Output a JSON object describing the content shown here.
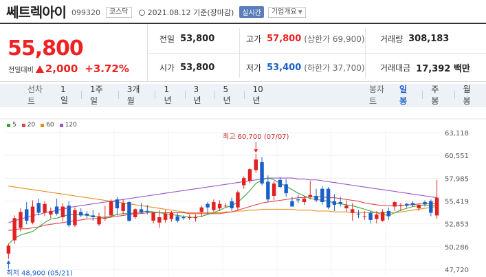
{
  "header": {
    "name": "쎄트렉아이",
    "code": "099320",
    "market": "코스닥",
    "date": "2021.08.12 기준(장마감)",
    "realtime": "실시간",
    "company_info": "기업개요"
  },
  "summary": {
    "price": "55,800",
    "change_label": "전일대비",
    "change": "2,000",
    "change_rate": "+3.72%",
    "prev_label": "전일",
    "prev": "53,800",
    "high_label": "고가",
    "high": "57,800",
    "upper": "(상한가 69,900)",
    "volume_label": "거래량",
    "volume": "308,183",
    "open_label": "시가",
    "open": "53,800",
    "low_label": "저가",
    "low": "53,400",
    "lower": "(하한가 37,700)",
    "amount_label": "거래대금",
    "amount": "17,392 백만"
  },
  "toolbar": {
    "line_label": "선차트",
    "line_periods": [
      "1일",
      "1주일",
      "3개월",
      "1년",
      "3년",
      "5년",
      "10년"
    ],
    "candle_label": "봉차트",
    "candle_periods": [
      "일봉",
      "주봉",
      "월봉"
    ],
    "active_candle": "일봉"
  },
  "colors": {
    "up": "#e22222",
    "down": "#1a5fc9",
    "ma5": "#3aa63a",
    "ma20": "#e04545",
    "ma60": "#e88a1a",
    "ma120": "#9a55c8"
  },
  "chart_data": {
    "type": "candlestick",
    "legend": [
      "5",
      "20",
      "60",
      "120"
    ],
    "y_ticks": [
      "63,118",
      "60,551",
      "57,985",
      "55,419",
      "52,853",
      "50,286",
      "47,720"
    ],
    "ylim": [
      47720,
      63118
    ],
    "high_label": "최고 60,700 (07/07)",
    "low_label": "최저 48,900 (05/21)",
    "candles": [
      [
        49500,
        50600,
        48900,
        50400
      ],
      [
        51000,
        53800,
        50600,
        53500
      ],
      [
        52400,
        54600,
        52000,
        54200
      ],
      [
        54500,
        55300,
        52800,
        53200
      ],
      [
        53000,
        55500,
        52800,
        54800
      ],
      [
        55200,
        55700,
        53800,
        54100
      ],
      [
        54100,
        55400,
        53700,
        55100
      ],
      [
        53900,
        54700,
        53500,
        54300
      ],
      [
        54800,
        55700,
        53800,
        54000
      ],
      [
        53600,
        55200,
        53100,
        54800
      ],
      [
        54900,
        55400,
        52500,
        52700
      ],
      [
        52700,
        54700,
        52500,
        54400
      ],
      [
        54200,
        54600,
        53600,
        53800
      ],
      [
        54000,
        54300,
        53500,
        53800
      ],
      [
        53800,
        54400,
        53200,
        53600
      ],
      [
        52800,
        54100,
        52600,
        53700
      ],
      [
        53500,
        54900,
        53200,
        53500
      ],
      [
        53800,
        55600,
        53600,
        55400
      ],
      [
        55600,
        55900,
        53800,
        54600
      ],
      [
        54300,
        55600,
        53900,
        55200
      ],
      [
        55300,
        55400,
        53100,
        53200
      ],
      [
        53600,
        54600,
        53400,
        54500
      ],
      [
        54500,
        55200,
        54000,
        54100
      ],
      [
        54300,
        55000,
        53900,
        54200
      ],
      [
        53200,
        54200,
        52900,
        54100
      ],
      [
        53000,
        54400,
        52400,
        53600
      ],
      [
        53300,
        54400,
        53000,
        54000
      ],
      [
        53400,
        54300,
        53100,
        54100
      ],
      [
        53700,
        54100,
        53000,
        53200
      ],
      [
        53600,
        53800,
        53300,
        53500
      ],
      [
        53600,
        53900,
        53300,
        53600
      ],
      [
        53500,
        53900,
        53100,
        53600
      ],
      [
        54200,
        54900,
        53600,
        54700
      ],
      [
        55100,
        55300,
        54000,
        54700
      ],
      [
        54400,
        55600,
        54200,
        55300
      ],
      [
        54600,
        55500,
        54300,
        55100
      ],
      [
        54900,
        55200,
        54700,
        54900
      ],
      [
        55400,
        55800,
        54300,
        54600
      ],
      [
        54700,
        56600,
        54400,
        56400
      ],
      [
        57200,
        58200,
        56800,
        58000
      ],
      [
        57700,
        59100,
        57400,
        59000
      ],
      [
        58900,
        60700,
        58600,
        60100
      ],
      [
        59800,
        60400,
        57200,
        57400
      ],
      [
        57600,
        58300,
        55300,
        55600
      ],
      [
        56000,
        57700,
        55500,
        57400
      ],
      [
        57800,
        58100,
        56900,
        57000
      ],
      [
        57300,
        57900,
        55900,
        56300
      ],
      [
        55400,
        55900,
        54800,
        54800
      ],
      [
        55600,
        56100,
        55200,
        55500
      ],
      [
        55300,
        56000,
        55000,
        55700
      ],
      [
        55900,
        57700,
        55600,
        56100
      ],
      [
        56000,
        56800,
        55300,
        55500
      ],
      [
        56800,
        57100,
        55000,
        55300
      ],
      [
        56800,
        57000,
        54500,
        54700
      ],
      [
        55400,
        56200,
        54300,
        55000
      ],
      [
        55300,
        55900,
        54800,
        55100
      ],
      [
        54600,
        55500,
        54200,
        54900
      ],
      [
        54100,
        55200,
        53200,
        54500
      ],
      [
        54000,
        54400,
        53500,
        53900
      ],
      [
        53700,
        54300,
        53300,
        53700
      ],
      [
        54100,
        54300,
        52900,
        53300
      ],
      [
        53400,
        54300,
        52900,
        53900
      ],
      [
        53200,
        54500,
        53100,
        54200
      ],
      [
        54300,
        54700,
        53300,
        53700
      ],
      [
        54800,
        55400,
        54300,
        55300
      ],
      [
        54900,
        55200,
        54300,
        55000
      ],
      [
        55100,
        55200,
        54700,
        54900
      ],
      [
        55200,
        55400,
        54800,
        55000
      ],
      [
        54600,
        55100,
        54300,
        55000
      ],
      [
        55300,
        55500,
        54800,
        55100
      ],
      [
        55400,
        55600,
        53700,
        54100
      ],
      [
        53800,
        57800,
        53400,
        55800
      ]
    ],
    "ma5": [
      50600,
      51200,
      51600,
      51800,
      52000,
      52500,
      53000,
      53400,
      53500,
      53700,
      53900,
      53900,
      53900,
      53800,
      53700,
      53600,
      53600,
      53700,
      53900,
      54000,
      54000,
      54100,
      54200,
      54300,
      54200,
      54100,
      54000,
      53900,
      53800,
      53700,
      53600,
      53600,
      53700,
      53900,
      54100,
      54400,
      54700,
      54900,
      55300,
      55900,
      56600,
      57400,
      57800,
      58000,
      57800,
      57400,
      57100,
      56700,
      56300,
      56000,
      55700,
      55600,
      55500,
      55400,
      55200,
      55100,
      55000,
      54900,
      54700,
      54500,
      54300,
      54100,
      53900,
      53800,
      54100,
      54400,
      54600,
      54800,
      54900,
      55000,
      54900,
      55000
    ],
    "ma20": [
      52100,
      52200,
      52300,
      52300,
      52400,
      52500,
      52700,
      52800,
      52900,
      53000,
      53100,
      53200,
      53300,
      53400,
      53400,
      53500,
      53500,
      53600,
      53700,
      53800,
      53900,
      54000,
      54000,
      54100,
      54100,
      54100,
      54100,
      54100,
      54100,
      54100,
      54000,
      54000,
      54000,
      54000,
      54000,
      54000,
      54100,
      54200,
      54400,
      54600,
      54800,
      55000,
      55200,
      55300,
      55400,
      55500,
      55600,
      55700,
      55800,
      55800,
      55900,
      55900,
      55900,
      55800,
      55800,
      55700,
      55600,
      55500,
      55400,
      55200,
      55100,
      55000,
      54900,
      54900,
      54900,
      54900,
      55000,
      55000,
      55100,
      55100,
      55100,
      55200
    ],
    "ma60": [
      57100,
      57000,
      56900,
      56800,
      56700,
      56600,
      56500,
      56400,
      56300,
      56200,
      56100,
      56000,
      55900,
      55800,
      55700,
      55600,
      55500,
      55400,
      55300,
      55200,
      55100,
      55000,
      54900,
      54800,
      54700,
      54600,
      54500,
      54400,
      54300,
      54200,
      54100,
      54100,
      54100,
      54100,
      54100,
      54100,
      54200,
      54200,
      54300,
      54300,
      54400,
      54400,
      54500,
      54500,
      54500,
      54500,
      54500,
      54500,
      54400,
      54400,
      54400,
      54300,
      54300,
      54300,
      54200,
      54200,
      54200,
      54100,
      54100,
      54100,
      54100,
      54100,
      54100,
      54100,
      54100,
      54200,
      54300,
      54400,
      54500,
      54600,
      54700,
      54800
    ],
    "ma120": [
      53000,
      53200,
      53400,
      53600,
      53800,
      53900,
      54100,
      54200,
      54400,
      54500,
      54700,
      54800,
      54900,
      55000,
      55100,
      55200,
      55300,
      55400,
      55500,
      55600,
      55700,
      55800,
      55900,
      56000,
      56100,
      56200,
      56300,
      56400,
      56500,
      56600,
      56700,
      56800,
      56900,
      57000,
      57100,
      57200,
      57300,
      57400,
      57500,
      57600,
      57700,
      57800,
      57900,
      58000,
      58000,
      58000,
      58000,
      58000,
      57900,
      57900,
      57800,
      57800,
      57700,
      57600,
      57500,
      57400,
      57300,
      57200,
      57100,
      57000,
      56900,
      56800,
      56700,
      56600,
      56500,
      56400,
      56300,
      56200,
      56100,
      56000,
      55900,
      55800
    ]
  }
}
